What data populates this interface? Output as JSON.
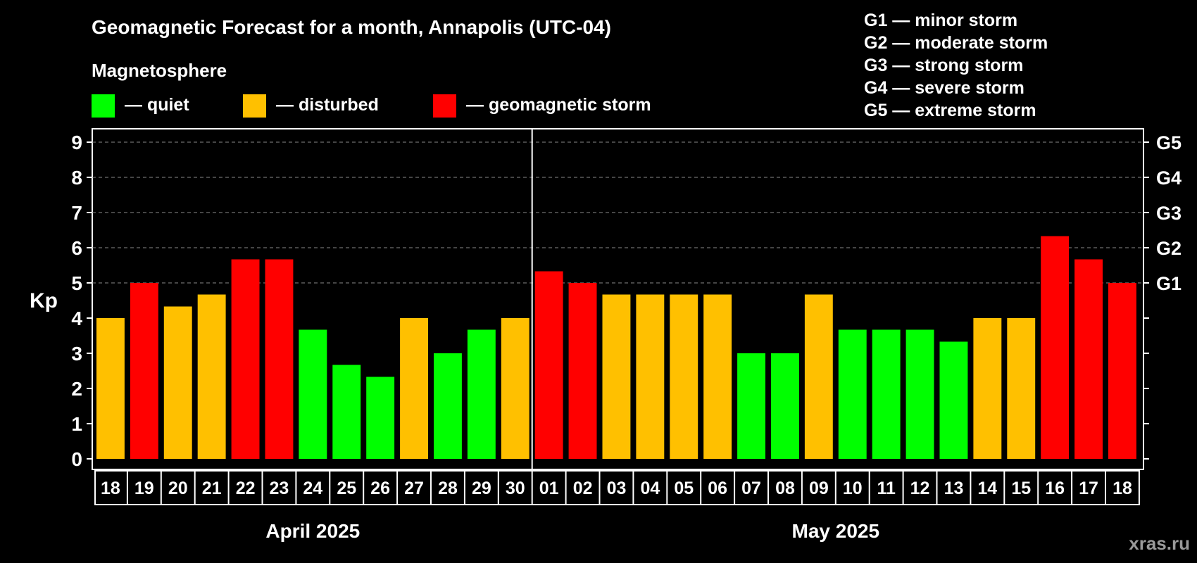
{
  "title": "Geomagnetic Forecast for a month, Annapolis (UTC-04)",
  "legend": {
    "heading": "Magnetosphere",
    "items": [
      {
        "label": "— quiet",
        "color": "#00ff00"
      },
      {
        "label": "— disturbed",
        "color": "#ffc000"
      },
      {
        "label": "— geomagnetic storm",
        "color": "#ff0000"
      }
    ]
  },
  "storm_levels": [
    "G1 — minor storm",
    "G2 — moderate storm",
    "G3 — strong storm",
    "G4 — severe storm",
    "G5 — extreme storm"
  ],
  "watermark": "xras.ru",
  "chart_data": {
    "type": "bar",
    "ylabel": "Kp",
    "ylim": [
      0,
      9
    ],
    "yticks": [
      0,
      1,
      2,
      3,
      4,
      5,
      6,
      7,
      8,
      9
    ],
    "right_axis_labels": [
      {
        "kp": 5,
        "label": "G1"
      },
      {
        "kp": 6,
        "label": "G2"
      },
      {
        "kp": 7,
        "label": "G3"
      },
      {
        "kp": 8,
        "label": "G4"
      },
      {
        "kp": 9,
        "label": "G5"
      }
    ],
    "grid": "horizontal dashed at 5, 6, 7, 8, 9",
    "months": [
      {
        "name": "April 2025",
        "first_index": 0,
        "last_index": 12
      },
      {
        "name": "May 2025",
        "first_index": 13,
        "last_index": 30
      }
    ],
    "categories": [
      "18",
      "19",
      "20",
      "21",
      "22",
      "23",
      "24",
      "25",
      "26",
      "27",
      "28",
      "29",
      "30",
      "01",
      "02",
      "03",
      "04",
      "05",
      "06",
      "07",
      "08",
      "09",
      "10",
      "11",
      "12",
      "13",
      "14",
      "15",
      "16",
      "17",
      "18"
    ],
    "values": [
      4.0,
      5.0,
      4.33,
      4.67,
      5.67,
      5.67,
      3.67,
      2.67,
      2.33,
      4.0,
      3.0,
      3.67,
      4.0,
      5.33,
      5.0,
      4.67,
      4.67,
      4.67,
      4.67,
      3.0,
      3.0,
      4.67,
      3.67,
      3.67,
      3.67,
      3.33,
      4.0,
      4.0,
      6.33,
      5.67,
      5.0
    ],
    "status": [
      "disturbed",
      "storm",
      "disturbed",
      "disturbed",
      "storm",
      "storm",
      "quiet",
      "quiet",
      "quiet",
      "disturbed",
      "quiet",
      "quiet",
      "disturbed",
      "storm",
      "storm",
      "disturbed",
      "disturbed",
      "disturbed",
      "disturbed",
      "quiet",
      "quiet",
      "disturbed",
      "quiet",
      "quiet",
      "quiet",
      "quiet",
      "disturbed",
      "disturbed",
      "storm",
      "storm",
      "storm"
    ],
    "colors": {
      "quiet": "#00ff00",
      "disturbed": "#ffc000",
      "storm": "#ff0000"
    }
  }
}
